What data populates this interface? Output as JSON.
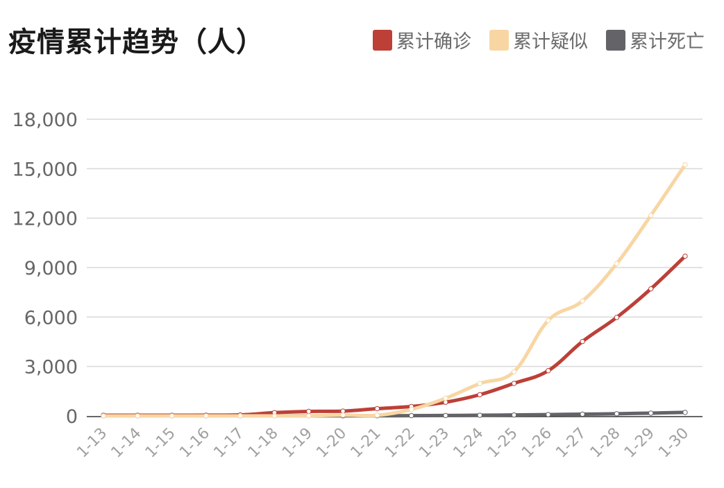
{
  "title": "疫情累计趋势（人）",
  "legend": [
    {
      "label": "累计确诊",
      "color": "#bc4038"
    },
    {
      "label": "累计疑似",
      "color": "#f8d6a3"
    },
    {
      "label": "累计死亡",
      "color": "#636368"
    }
  ],
  "chart_data": {
    "type": "line",
    "title": "疫情累计趋势（人）",
    "xlabel": "",
    "ylabel": "",
    "ylim": [
      0,
      18000
    ],
    "yticks": [
      "0",
      "3,000",
      "6,000",
      "9,000",
      "12,000",
      "15,000",
      "18,000"
    ],
    "grid": true,
    "legend_position": "top-right",
    "categories": [
      "1-13",
      "1-14",
      "1-15",
      "1-16",
      "1-17",
      "1-18",
      "1-19",
      "1-20",
      "1-21",
      "1-22",
      "1-23",
      "1-24",
      "1-25",
      "1-26",
      "1-27",
      "1-28",
      "1-29",
      "1-30"
    ],
    "series": [
      {
        "name": "累计确诊",
        "color": "#bc4038",
        "values": [
          41,
          41,
          41,
          45,
          62,
          198,
          275,
          291,
          440,
          571,
          830,
          1287,
          1975,
          2744,
          4515,
          5974,
          7711,
          9692
        ]
      },
      {
        "name": "累计疑似",
        "color": "#f8d6a3",
        "values": [
          0,
          0,
          0,
          0,
          0,
          0,
          0,
          54,
          37,
          393,
          1072,
          1965,
          2684,
          5794,
          6973,
          9239,
          12167,
          15238
        ]
      },
      {
        "name": "累计死亡",
        "color": "#636368",
        "values": [
          1,
          1,
          1,
          2,
          2,
          3,
          4,
          6,
          9,
          17,
          25,
          41,
          56,
          80,
          106,
          132,
          170,
          213
        ]
      }
    ]
  }
}
